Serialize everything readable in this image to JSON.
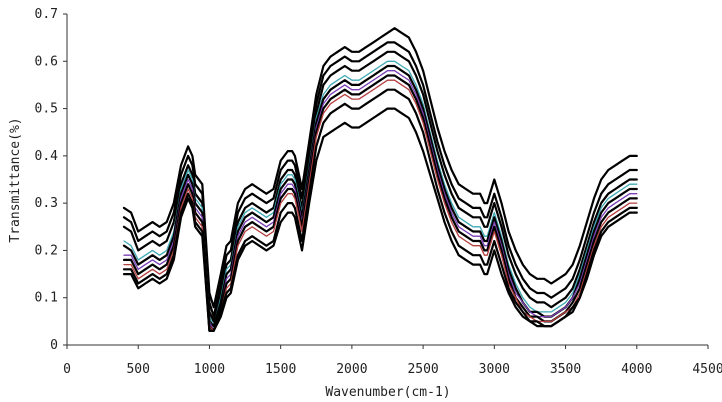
{
  "chart_data": {
    "type": "line",
    "title": "",
    "xlabel": "Wavenumber(cm-1)",
    "ylabel": "Transmittance(%)",
    "xlim": [
      0,
      4500
    ],
    "ylim": [
      0,
      0.7
    ],
    "x_ticks": [
      0,
      500,
      1000,
      1500,
      2000,
      2500,
      3000,
      3500,
      4000,
      4500
    ],
    "y_ticks": [
      0,
      0.1,
      0.2,
      0.3,
      0.4,
      0.5,
      0.6,
      0.7
    ],
    "y_tick_labels": [
      "0",
      "0.1",
      "0.2",
      "0.3",
      "0.4",
      "0.5",
      "0.6",
      "0.7"
    ],
    "grid": false,
    "legend": "none",
    "x": [
      400,
      450,
      500,
      550,
      600,
      650,
      700,
      750,
      800,
      850,
      880,
      900,
      950,
      1000,
      1030,
      1080,
      1120,
      1150,
      1200,
      1250,
      1300,
      1350,
      1400,
      1450,
      1500,
      1550,
      1580,
      1600,
      1650,
      1700,
      1750,
      1800,
      1850,
      1900,
      1950,
      2000,
      2050,
      2100,
      2150,
      2200,
      2250,
      2300,
      2350,
      2400,
      2450,
      2500,
      2550,
      2600,
      2650,
      2700,
      2750,
      2800,
      2850,
      2900,
      2930,
      2950,
      3000,
      3050,
      3100,
      3150,
      3200,
      3250,
      3300,
      3350,
      3400,
      3450,
      3500,
      3550,
      3600,
      3650,
      3700,
      3750,
      3800,
      3850,
      3900,
      3950,
      4000
    ],
    "series": [
      {
        "color": "#000000",
        "values": [
          0.29,
          0.28,
          0.24,
          0.25,
          0.26,
          0.25,
          0.26,
          0.3,
          0.38,
          0.42,
          0.4,
          0.36,
          0.34,
          0.11,
          0.08,
          0.15,
          0.21,
          0.22,
          0.3,
          0.33,
          0.34,
          0.33,
          0.32,
          0.33,
          0.39,
          0.41,
          0.41,
          0.4,
          0.33,
          0.43,
          0.53,
          0.59,
          0.61,
          0.62,
          0.63,
          0.62,
          0.62,
          0.63,
          0.64,
          0.65,
          0.66,
          0.67,
          0.66,
          0.65,
          0.62,
          0.58,
          0.52,
          0.46,
          0.41,
          0.37,
          0.34,
          0.33,
          0.32,
          0.32,
          0.3,
          0.3,
          0.35,
          0.3,
          0.24,
          0.2,
          0.17,
          0.15,
          0.14,
          0.14,
          0.13,
          0.14,
          0.15,
          0.17,
          0.21,
          0.26,
          0.31,
          0.35,
          0.37,
          0.38,
          0.39,
          0.4,
          0.4
        ]
      },
      {
        "color": "#000000",
        "values": [
          0.27,
          0.26,
          0.22,
          0.23,
          0.24,
          0.23,
          0.24,
          0.28,
          0.36,
          0.4,
          0.38,
          0.34,
          0.32,
          0.09,
          0.06,
          0.13,
          0.19,
          0.2,
          0.28,
          0.31,
          0.32,
          0.31,
          0.3,
          0.31,
          0.37,
          0.39,
          0.39,
          0.38,
          0.31,
          0.41,
          0.51,
          0.57,
          0.59,
          0.6,
          0.61,
          0.6,
          0.6,
          0.61,
          0.62,
          0.63,
          0.64,
          0.64,
          0.63,
          0.62,
          0.59,
          0.55,
          0.49,
          0.43,
          0.38,
          0.34,
          0.31,
          0.3,
          0.29,
          0.29,
          0.27,
          0.27,
          0.32,
          0.27,
          0.21,
          0.17,
          0.14,
          0.12,
          0.11,
          0.11,
          0.1,
          0.11,
          0.12,
          0.14,
          0.18,
          0.23,
          0.28,
          0.32,
          0.34,
          0.35,
          0.36,
          0.37,
          0.37
        ]
      },
      {
        "color": "#000000",
        "values": [
          0.25,
          0.24,
          0.2,
          0.21,
          0.22,
          0.21,
          0.22,
          0.26,
          0.34,
          0.38,
          0.36,
          0.32,
          0.3,
          0.07,
          0.05,
          0.11,
          0.17,
          0.18,
          0.26,
          0.29,
          0.3,
          0.29,
          0.28,
          0.29,
          0.35,
          0.37,
          0.37,
          0.36,
          0.29,
          0.39,
          0.49,
          0.55,
          0.57,
          0.58,
          0.59,
          0.58,
          0.58,
          0.59,
          0.6,
          0.61,
          0.62,
          0.62,
          0.61,
          0.6,
          0.57,
          0.53,
          0.47,
          0.41,
          0.36,
          0.32,
          0.29,
          0.28,
          0.27,
          0.27,
          0.25,
          0.25,
          0.3,
          0.25,
          0.19,
          0.15,
          0.12,
          0.1,
          0.09,
          0.09,
          0.08,
          0.09,
          0.1,
          0.12,
          0.16,
          0.21,
          0.26,
          0.3,
          0.32,
          0.33,
          0.34,
          0.35,
          0.35
        ]
      },
      {
        "color": "#3fa9b5",
        "values": [
          0.22,
          0.21,
          0.18,
          0.19,
          0.2,
          0.19,
          0.2,
          0.24,
          0.33,
          0.37,
          0.35,
          0.31,
          0.29,
          0.06,
          0.04,
          0.1,
          0.16,
          0.17,
          0.25,
          0.28,
          0.29,
          0.28,
          0.27,
          0.28,
          0.34,
          0.36,
          0.36,
          0.35,
          0.28,
          0.38,
          0.48,
          0.53,
          0.55,
          0.56,
          0.57,
          0.56,
          0.56,
          0.57,
          0.58,
          0.59,
          0.6,
          0.6,
          0.59,
          0.58,
          0.55,
          0.51,
          0.45,
          0.39,
          0.34,
          0.3,
          0.27,
          0.26,
          0.25,
          0.25,
          0.23,
          0.23,
          0.28,
          0.23,
          0.17,
          0.13,
          0.1,
          0.08,
          0.07,
          0.07,
          0.07,
          0.08,
          0.09,
          0.11,
          0.15,
          0.2,
          0.25,
          0.29,
          0.31,
          0.32,
          0.33,
          0.34,
          0.34
        ]
      },
      {
        "color": "#000000",
        "values": [
          0.21,
          0.2,
          0.17,
          0.18,
          0.19,
          0.18,
          0.19,
          0.23,
          0.32,
          0.36,
          0.34,
          0.3,
          0.28,
          0.05,
          0.04,
          0.09,
          0.15,
          0.16,
          0.24,
          0.27,
          0.28,
          0.27,
          0.26,
          0.27,
          0.33,
          0.35,
          0.35,
          0.34,
          0.27,
          0.37,
          0.47,
          0.52,
          0.54,
          0.55,
          0.56,
          0.55,
          0.55,
          0.56,
          0.57,
          0.58,
          0.59,
          0.59,
          0.58,
          0.57,
          0.54,
          0.5,
          0.44,
          0.38,
          0.33,
          0.29,
          0.26,
          0.25,
          0.24,
          0.24,
          0.22,
          0.22,
          0.27,
          0.22,
          0.16,
          0.12,
          0.09,
          0.07,
          0.07,
          0.06,
          0.06,
          0.07,
          0.08,
          0.1,
          0.14,
          0.19,
          0.24,
          0.28,
          0.3,
          0.31,
          0.32,
          0.33,
          0.33
        ]
      },
      {
        "color": "#7a3fb5",
        "values": [
          0.19,
          0.19,
          0.16,
          0.17,
          0.18,
          0.17,
          0.18,
          0.22,
          0.31,
          0.35,
          0.33,
          0.29,
          0.27,
          0.05,
          0.03,
          0.08,
          0.14,
          0.15,
          0.23,
          0.26,
          0.27,
          0.26,
          0.25,
          0.26,
          0.32,
          0.34,
          0.34,
          0.33,
          0.26,
          0.36,
          0.46,
          0.51,
          0.53,
          0.54,
          0.55,
          0.54,
          0.54,
          0.55,
          0.56,
          0.57,
          0.58,
          0.58,
          0.57,
          0.56,
          0.53,
          0.49,
          0.43,
          0.37,
          0.32,
          0.28,
          0.25,
          0.24,
          0.23,
          0.23,
          0.21,
          0.21,
          0.26,
          0.21,
          0.15,
          0.11,
          0.09,
          0.07,
          0.06,
          0.06,
          0.06,
          0.07,
          0.08,
          0.1,
          0.13,
          0.18,
          0.23,
          0.27,
          0.29,
          0.3,
          0.31,
          0.32,
          0.32
        ]
      },
      {
        "color": "#000000",
        "values": [
          0.18,
          0.18,
          0.15,
          0.16,
          0.17,
          0.16,
          0.17,
          0.21,
          0.3,
          0.34,
          0.32,
          0.28,
          0.26,
          0.04,
          0.03,
          0.08,
          0.13,
          0.14,
          0.22,
          0.25,
          0.26,
          0.25,
          0.24,
          0.25,
          0.31,
          0.33,
          0.33,
          0.32,
          0.25,
          0.35,
          0.45,
          0.5,
          0.52,
          0.53,
          0.54,
          0.53,
          0.53,
          0.54,
          0.55,
          0.56,
          0.57,
          0.57,
          0.56,
          0.55,
          0.52,
          0.48,
          0.42,
          0.36,
          0.31,
          0.27,
          0.24,
          0.23,
          0.22,
          0.22,
          0.2,
          0.2,
          0.25,
          0.2,
          0.14,
          0.1,
          0.08,
          0.06,
          0.06,
          0.05,
          0.05,
          0.06,
          0.07,
          0.09,
          0.12,
          0.17,
          0.22,
          0.26,
          0.28,
          0.29,
          0.3,
          0.31,
          0.31
        ]
      },
      {
        "color": "#b53f3f",
        "values": [
          0.17,
          0.17,
          0.14,
          0.15,
          0.16,
          0.15,
          0.16,
          0.2,
          0.29,
          0.33,
          0.31,
          0.27,
          0.25,
          0.04,
          0.03,
          0.07,
          0.12,
          0.13,
          0.21,
          0.24,
          0.25,
          0.24,
          0.23,
          0.24,
          0.3,
          0.32,
          0.32,
          0.31,
          0.24,
          0.34,
          0.44,
          0.49,
          0.51,
          0.52,
          0.53,
          0.52,
          0.52,
          0.53,
          0.54,
          0.55,
          0.56,
          0.56,
          0.55,
          0.54,
          0.51,
          0.47,
          0.41,
          0.35,
          0.3,
          0.26,
          0.23,
          0.22,
          0.21,
          0.21,
          0.19,
          0.19,
          0.24,
          0.19,
          0.13,
          0.1,
          0.07,
          0.06,
          0.05,
          0.05,
          0.05,
          0.06,
          0.07,
          0.08,
          0.11,
          0.16,
          0.21,
          0.25,
          0.27,
          0.28,
          0.29,
          0.3,
          0.3
        ]
      },
      {
        "color": "#000000",
        "values": [
          0.16,
          0.16,
          0.13,
          0.14,
          0.15,
          0.14,
          0.15,
          0.19,
          0.28,
          0.32,
          0.3,
          0.26,
          0.24,
          0.03,
          0.03,
          0.07,
          0.11,
          0.12,
          0.19,
          0.22,
          0.23,
          0.22,
          0.21,
          0.22,
          0.28,
          0.3,
          0.3,
          0.29,
          0.22,
          0.32,
          0.42,
          0.47,
          0.49,
          0.5,
          0.51,
          0.5,
          0.5,
          0.51,
          0.52,
          0.53,
          0.54,
          0.54,
          0.53,
          0.52,
          0.49,
          0.45,
          0.39,
          0.33,
          0.28,
          0.24,
          0.21,
          0.2,
          0.19,
          0.19,
          0.17,
          0.17,
          0.22,
          0.17,
          0.12,
          0.09,
          0.07,
          0.05,
          0.05,
          0.04,
          0.04,
          0.05,
          0.06,
          0.08,
          0.1,
          0.15,
          0.2,
          0.24,
          0.26,
          0.27,
          0.28,
          0.29,
          0.29
        ]
      },
      {
        "color": "#000000",
        "values": [
          0.15,
          0.15,
          0.12,
          0.13,
          0.14,
          0.13,
          0.14,
          0.18,
          0.27,
          0.31,
          0.29,
          0.25,
          0.23,
          0.03,
          0.03,
          0.06,
          0.1,
          0.11,
          0.18,
          0.21,
          0.22,
          0.21,
          0.2,
          0.21,
          0.26,
          0.28,
          0.28,
          0.27,
          0.2,
          0.3,
          0.39,
          0.44,
          0.45,
          0.46,
          0.47,
          0.46,
          0.46,
          0.47,
          0.48,
          0.49,
          0.5,
          0.5,
          0.49,
          0.48,
          0.45,
          0.41,
          0.36,
          0.31,
          0.26,
          0.22,
          0.19,
          0.18,
          0.17,
          0.17,
          0.15,
          0.15,
          0.2,
          0.15,
          0.11,
          0.08,
          0.06,
          0.05,
          0.04,
          0.04,
          0.04,
          0.05,
          0.06,
          0.07,
          0.1,
          0.14,
          0.19,
          0.23,
          0.25,
          0.26,
          0.27,
          0.28,
          0.28
        ]
      }
    ]
  }
}
